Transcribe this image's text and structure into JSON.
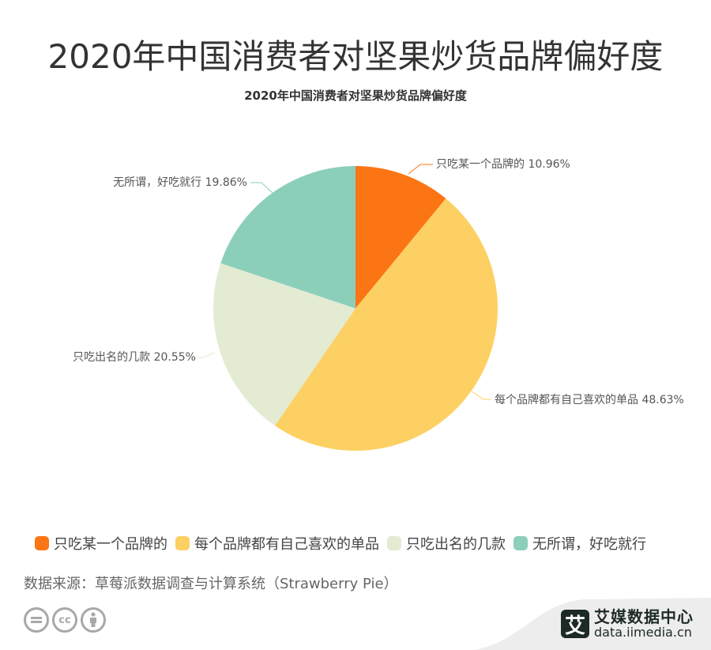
{
  "header": {
    "title": "2020年中国消费者对坚果炒货品牌偏好度",
    "subtitle": "2020年中国消费者对坚果炒货品牌偏好度"
  },
  "chart_data": {
    "type": "pie",
    "title": "2020年中国消费者对坚果炒货品牌偏好度",
    "categories": [
      "只吃某一个品牌的",
      "每个品牌都有自己喜欢的单品",
      "只吃出名的几款",
      "无所谓，好吃就行"
    ],
    "values": [
      10.96,
      48.63,
      20.55,
      19.86
    ],
    "unit": "%",
    "colors": [
      "#fb7514",
      "#fdd063",
      "#e3ebd3",
      "#8bcfbb"
    ],
    "data_labels": [
      "只吃某一个品牌的 10.96%",
      "每个品牌都有自己喜欢的单品 48.63%",
      "只吃出名的几款 20.55%",
      "无所谓，好吃就行 19.86%"
    ],
    "legend_position": "bottom-left"
  },
  "legend": {
    "items": [
      {
        "label": "只吃某一个品牌的",
        "color": "#fb7514"
      },
      {
        "label": "每个品牌都有自己喜欢的单品",
        "color": "#fdd063"
      },
      {
        "label": "只吃出名的几款",
        "color": "#e3ebd3"
      },
      {
        "label": "无所谓，好吃就行",
        "color": "#8bcfbb"
      }
    ]
  },
  "footer": {
    "source": "数据来源：草莓派数据调查与计算系统（Strawberry Pie）",
    "cc_icons": [
      "equals-icon",
      "cc-icon",
      "person-icon"
    ],
    "brand_logo_char": "艾",
    "brand_name": "艾媒数据中心",
    "brand_url": "data.iimedia.cn"
  }
}
